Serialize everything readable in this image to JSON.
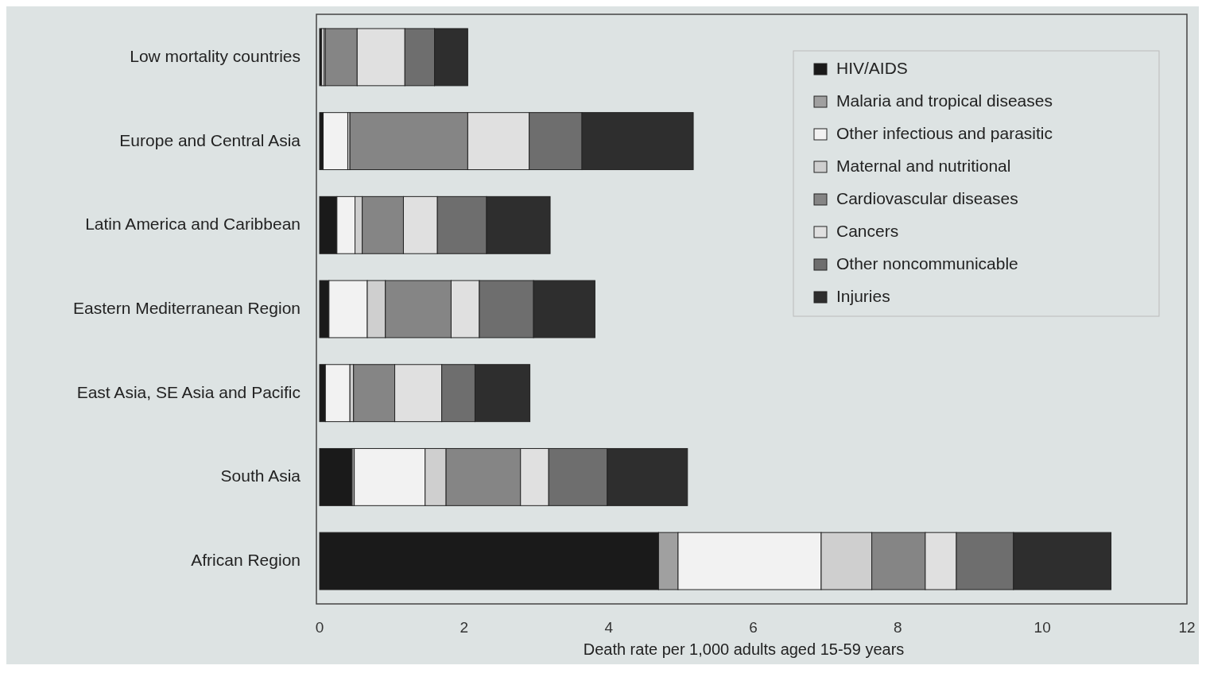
{
  "chart_data": {
    "type": "bar",
    "orientation": "horizontal",
    "stacked": true,
    "xlabel": "Death rate per 1,000 adults aged 15-59 years",
    "categories": [
      "Low mortality countries",
      "Europe and Central Asia",
      "Latin America and Caribbean",
      "Eastern Mediterranean Region",
      "East Asia, SE Asia and Pacific",
      "South Asia",
      "African Region"
    ],
    "series": [
      {
        "name": "HIV/AIDS",
        "color": "#1a1a1a",
        "values": [
          0.03,
          0.05,
          0.24,
          0.13,
          0.08,
          0.45,
          4.69
        ]
      },
      {
        "name": "Malaria and tropical diseases",
        "color": "#a0a0a0",
        "values": [
          0,
          0,
          0,
          0,
          0,
          0.03,
          0.27
        ]
      },
      {
        "name": "Other infectious and parasitic",
        "color": "#f2f2f2",
        "values": [
          0.03,
          0.34,
          0.25,
          0.53,
          0.34,
          0.98,
          1.98
        ]
      },
      {
        "name": "Maternal and nutritional",
        "color": "#cfcfcf",
        "values": [
          0.02,
          0.03,
          0.1,
          0.25,
          0.05,
          0.29,
          0.7
        ]
      },
      {
        "name": "Cardiovascular diseases",
        "color": "#858585",
        "values": [
          0.44,
          1.63,
          0.57,
          0.91,
          0.57,
          1.03,
          0.74
        ]
      },
      {
        "name": "Cancers",
        "color": "#e0e0e0",
        "values": [
          0.66,
          0.85,
          0.47,
          0.39,
          0.65,
          0.39,
          0.43
        ]
      },
      {
        "name": "Other noncommunicable",
        "color": "#6e6e6e",
        "values": [
          0.41,
          0.73,
          0.68,
          0.75,
          0.46,
          0.81,
          0.79
        ]
      },
      {
        "name": "Injuries",
        "color": "#2e2e2e",
        "values": [
          0.46,
          1.54,
          0.88,
          0.85,
          0.76,
          1.11,
          1.35
        ]
      }
    ],
    "xlim": [
      0,
      12
    ],
    "xticks": [
      0,
      2,
      4,
      6,
      8,
      10,
      12
    ],
    "legend": "top right"
  }
}
